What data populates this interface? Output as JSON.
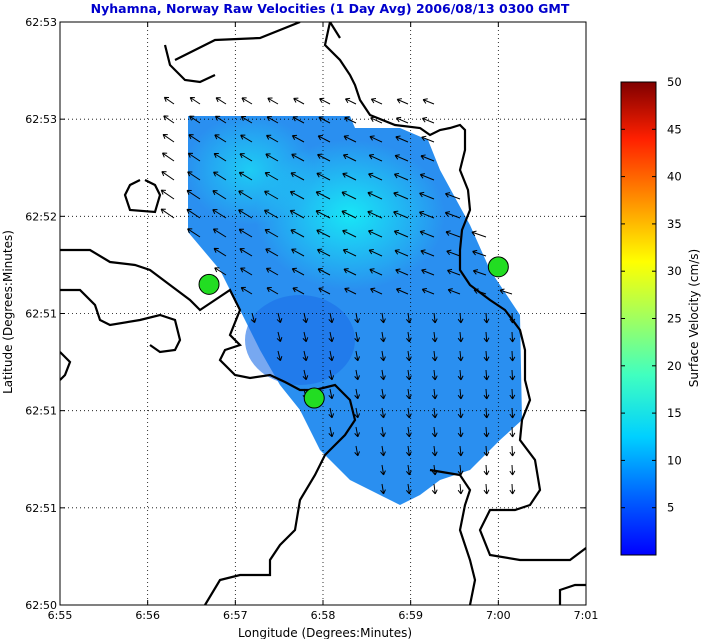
{
  "chart_data": {
    "type": "heatmap",
    "title": "Nyhamna, Norway Raw Velocities (1 Day Avg) 2006/08/13 0300 GMT",
    "xlabel": "Longitude (Degrees:Minutes)",
    "ylabel": "Latitude (Degrees:Minutes)",
    "xticks": [
      "6:55",
      "6:56",
      "6:57",
      "6:58",
      "6:59",
      "7:00",
      "7:01"
    ],
    "yticks": [
      "62:53",
      "62:53",
      "62:52",
      "62:51",
      "62:51",
      "62:51",
      "62:50"
    ],
    "grid": true,
    "colorbar": {
      "label": "Surface Velocity (cm/s)",
      "range": [
        0,
        50
      ],
      "ticks": [
        "50",
        "45",
        "40",
        "35",
        "30",
        "25",
        "20",
        "15",
        "10",
        "5"
      ]
    },
    "sites": [
      {
        "lon_min": 56.7,
        "lat_frac": 0.55
      },
      {
        "lon_min": 57.9,
        "lat_frac": 0.355
      },
      {
        "lon_min": 60.0,
        "lat_frac": 0.58
      }
    ]
  },
  "colors": {
    "title": "#0000cc",
    "sea_field": "#2a8ff0",
    "site_marker": "#22dd22",
    "coastline": "#000000"
  }
}
